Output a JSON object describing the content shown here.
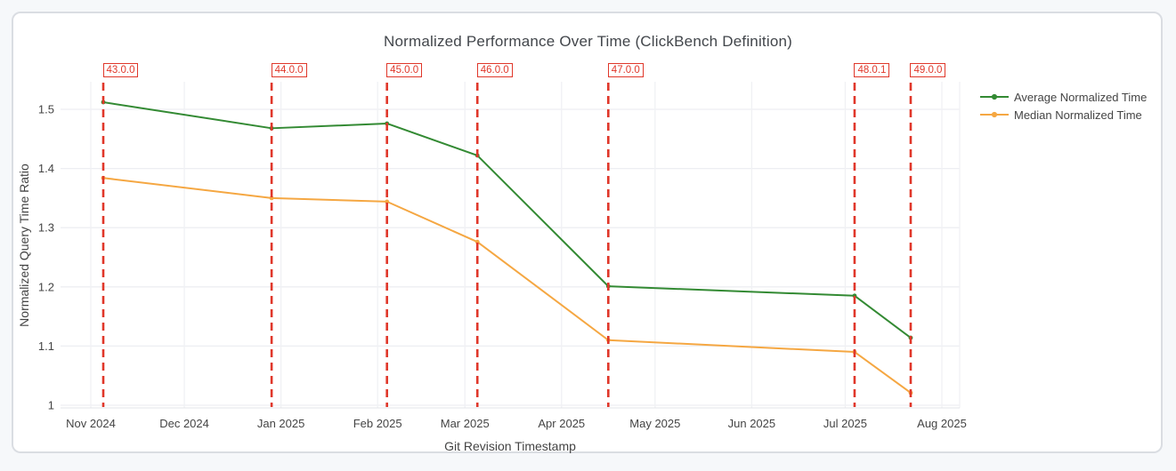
{
  "page_background": "#f6f8fa",
  "card": {
    "background": "#ffffff",
    "border_color": "#dadde2"
  },
  "chart_data": {
    "type": "line",
    "title": "Normalized Performance Over Time (ClickBench Definition)",
    "xlabel": "Git Revision Timestamp",
    "ylabel": "Normalized Query Time Ratio",
    "grid": true,
    "legend_position": "outside-top-right",
    "ylim": [
      1.0,
      1.55
    ],
    "y_ticks": [
      {
        "label": "1",
        "value": 1.0
      },
      {
        "label": "1.1",
        "value": 1.1
      },
      {
        "label": "1.2",
        "value": 1.2
      },
      {
        "label": "1.3",
        "value": 1.3
      },
      {
        "label": "1.4",
        "value": 1.4
      },
      {
        "label": "1.5",
        "value": 1.5
      }
    ],
    "x_ticks": [
      {
        "label": "Nov 2024",
        "date": "2024-11-01"
      },
      {
        "label": "Dec 2024",
        "date": "2024-12-01"
      },
      {
        "label": "Jan 2025",
        "date": "2025-01-01"
      },
      {
        "label": "Feb 2025",
        "date": "2025-02-01"
      },
      {
        "label": "Mar 2025",
        "date": "2025-03-01"
      },
      {
        "label": "Apr 2025",
        "date": "2025-04-01"
      },
      {
        "label": "May 2025",
        "date": "2025-05-01"
      },
      {
        "label": "Jun 2025",
        "date": "2025-06-01"
      },
      {
        "label": "Jul 2025",
        "date": "2025-07-01"
      },
      {
        "label": "Aug 2025",
        "date": "2025-08-01"
      }
    ],
    "releases": [
      {
        "version": "43.0.0",
        "date": "2024-11-05"
      },
      {
        "version": "44.0.0",
        "date": "2024-12-29"
      },
      {
        "version": "45.0.0",
        "date": "2025-02-04"
      },
      {
        "version": "46.0.0",
        "date": "2025-03-05"
      },
      {
        "version": "47.0.0",
        "date": "2025-04-16"
      },
      {
        "version": "48.0.1",
        "date": "2025-07-04"
      },
      {
        "version": "49.0.0",
        "date": "2025-07-22"
      }
    ],
    "release_line_color": "#e0372a",
    "series": [
      {
        "name": "Average Normalized Time",
        "color": "#338a33",
        "values": [
          1.512,
          1.468,
          1.476,
          1.422,
          1.201,
          1.185,
          1.114
        ]
      },
      {
        "name": "Median Normalized Time",
        "color": "#f5a742",
        "values": [
          1.384,
          1.35,
          1.344,
          1.276,
          1.11,
          1.09,
          1.021
        ]
      }
    ]
  }
}
